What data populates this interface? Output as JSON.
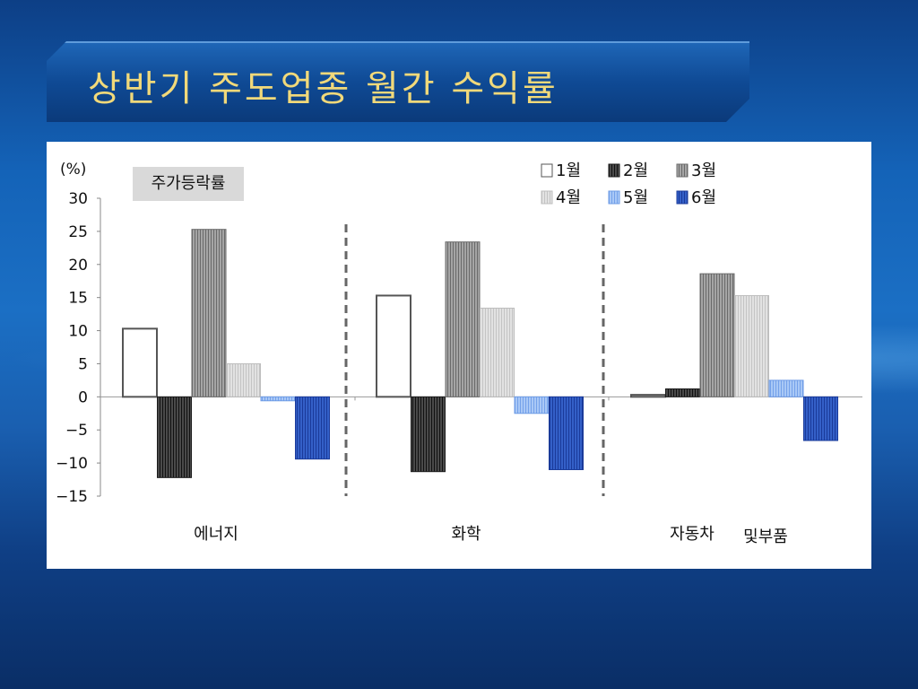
{
  "slide": {
    "title": "상반기 주도업종 월간 수익률"
  },
  "chart_data": {
    "type": "bar",
    "unit_label": "(%)",
    "annotation": "주가등락률",
    "categories": [
      "에너지",
      "화학",
      "자동차 및부품"
    ],
    "category_display": [
      {
        "parts": [
          "에너지"
        ]
      },
      {
        "parts": [
          "화학"
        ]
      },
      {
        "parts": [
          "자동차",
          "및부품"
        ]
      }
    ],
    "ylim": [
      -15,
      30
    ],
    "yticks": [
      30,
      25,
      20,
      15,
      10,
      5,
      0,
      -5,
      -10,
      -15
    ],
    "ytick_labels": [
      "30",
      "25",
      "20",
      "15",
      "10",
      "5",
      "0",
      "−5",
      "−10",
      "−15"
    ],
    "series": [
      {
        "name": "1월",
        "values": [
          10.3,
          15.3,
          0.3
        ],
        "color": "#ffffff",
        "stroke": "#555555",
        "pattern": "none"
      },
      {
        "name": "2월",
        "values": [
          -12.2,
          -11.3,
          1.2
        ],
        "color": "#3a3a3a",
        "stroke": "#1a1a1a",
        "pattern": "vertical-dark"
      },
      {
        "name": "3월",
        "values": [
          25.3,
          23.4,
          18.6
        ],
        "color": "#8c8c8c",
        "stroke": "#6a6a6a",
        "pattern": "vertical-mid"
      },
      {
        "name": "4월",
        "values": [
          5.0,
          13.4,
          15.3
        ],
        "color": "#d6d6d6",
        "stroke": "#bdbdbd",
        "pattern": "vertical-light"
      },
      {
        "name": "5월",
        "values": [
          -0.6,
          -2.5,
          2.5
        ],
        "color": "#8fb6f2",
        "stroke": "#6d9be6",
        "pattern": "vertical-blue-light"
      },
      {
        "name": "6월",
        "values": [
          -9.4,
          -11.0,
          -6.6
        ],
        "color": "#2a4fb5",
        "stroke": "#1a3a9a",
        "pattern": "vertical-blue-dark"
      }
    ],
    "legend_position": "top-right",
    "grid": false,
    "group_separators": "dashed"
  }
}
